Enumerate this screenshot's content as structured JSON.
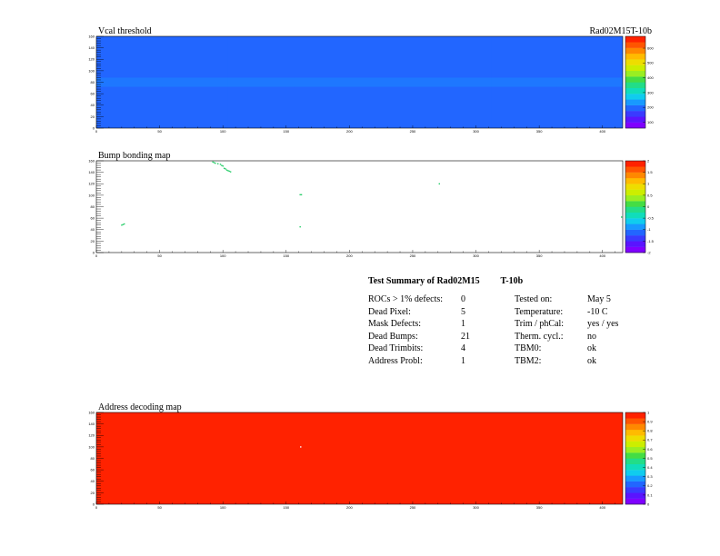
{
  "module_label": "Rad02M15T-10b",
  "chart_data": [
    {
      "type": "heatmap",
      "title": "Vcal threshold",
      "x_ticks": [
        0,
        50,
        100,
        150,
        200,
        250,
        300,
        350,
        400
      ],
      "y_ticks": [
        0,
        20,
        40,
        60,
        80,
        100,
        120,
        140,
        160
      ],
      "xlim": [
        0,
        416
      ],
      "ylim": [
        0,
        160
      ],
      "z_ticks": [
        100,
        200,
        300,
        400,
        500,
        600
      ],
      "zlim": [
        60,
        680
      ],
      "base_value": 190,
      "column_bands": [
        {
          "x": [
            0,
            52
          ],
          "value": 185
        },
        {
          "x": [
            52,
            104
          ],
          "value": 195
        },
        {
          "x": [
            104,
            156
          ],
          "value": 200
        },
        {
          "x": [
            156,
            208
          ],
          "value": 190
        },
        {
          "x": [
            208,
            260
          ],
          "value": 210
        },
        {
          "x": [
            260,
            312
          ],
          "value": 195
        },
        {
          "x": [
            312,
            364
          ],
          "value": 200
        },
        {
          "x": [
            364,
            416
          ],
          "value": 190
        }
      ],
      "row_band": {
        "y": [
          72,
          88
        ],
        "value": 225
      }
    },
    {
      "type": "scatter",
      "title": "Bump bonding map",
      "x_ticks": [
        0,
        50,
        100,
        150,
        200,
        250,
        300,
        350,
        400
      ],
      "y_ticks": [
        0,
        20,
        40,
        60,
        80,
        100,
        120,
        140,
        160
      ],
      "xlim": [
        0,
        416
      ],
      "ylim": [
        0,
        160
      ],
      "z_ticks": [
        -2,
        -1.5,
        -1,
        -0.5,
        0,
        0.5,
        1,
        1.5,
        2
      ],
      "zlim": [
        -2,
        2
      ],
      "points": [
        [
          92,
          158
        ],
        [
          93,
          157
        ],
        [
          94,
          156
        ],
        [
          96,
          155
        ],
        [
          98,
          154
        ],
        [
          99,
          152
        ],
        [
          100,
          151
        ],
        [
          101,
          147
        ],
        [
          102,
          146
        ],
        [
          103,
          144
        ],
        [
          104,
          143
        ],
        [
          105,
          142
        ],
        [
          106,
          141
        ],
        [
          20,
          48
        ],
        [
          21,
          49
        ],
        [
          22,
          50
        ],
        [
          161,
          101
        ],
        [
          162,
          101
        ],
        [
          161,
          45
        ],
        [
          271,
          120
        ],
        [
          415,
          62
        ]
      ]
    },
    {
      "type": "heatmap",
      "title": "Address decoding map",
      "x_ticks": [
        0,
        50,
        100,
        150,
        200,
        250,
        300,
        350,
        400
      ],
      "y_ticks": [
        0,
        20,
        40,
        60,
        80,
        100,
        120,
        140,
        160
      ],
      "xlim": [
        0,
        416
      ],
      "ylim": [
        0,
        160
      ],
      "z_ticks": [
        0,
        0.1,
        0.2,
        0.3,
        0.4,
        0.5,
        0.6,
        0.7,
        0.8,
        0.9,
        1
      ],
      "zlim": [
        0,
        1
      ],
      "base_value": 0.95,
      "dead_pixels": [
        [
          161,
          101
        ]
      ]
    }
  ],
  "summary": {
    "title_part1": "Test Summary of Rad02M15",
    "title_part2": "T-10b",
    "left": [
      {
        "label": "ROCs > 1% defects:",
        "value": "0"
      },
      {
        "label": "Dead Pixel:",
        "value": "5"
      },
      {
        "label": "Mask Defects:",
        "value": "1"
      },
      {
        "label": "Dead Bumps:",
        "value": "21"
      },
      {
        "label": "Dead Trimbits:",
        "value": "4"
      },
      {
        "label": "Address Probl:",
        "value": "1"
      }
    ],
    "right": [
      {
        "label": "Tested on:",
        "value": "May 5"
      },
      {
        "label": "Temperature:",
        "value": "-10 C"
      },
      {
        "label": "Trim / phCal:",
        "value": "yes / yes"
      },
      {
        "label": "Therm. cycl.:",
        "value": "no"
      },
      {
        "label": "TBM0:",
        "value": "ok"
      },
      {
        "label": "TBM2:",
        "value": "ok"
      }
    ]
  }
}
